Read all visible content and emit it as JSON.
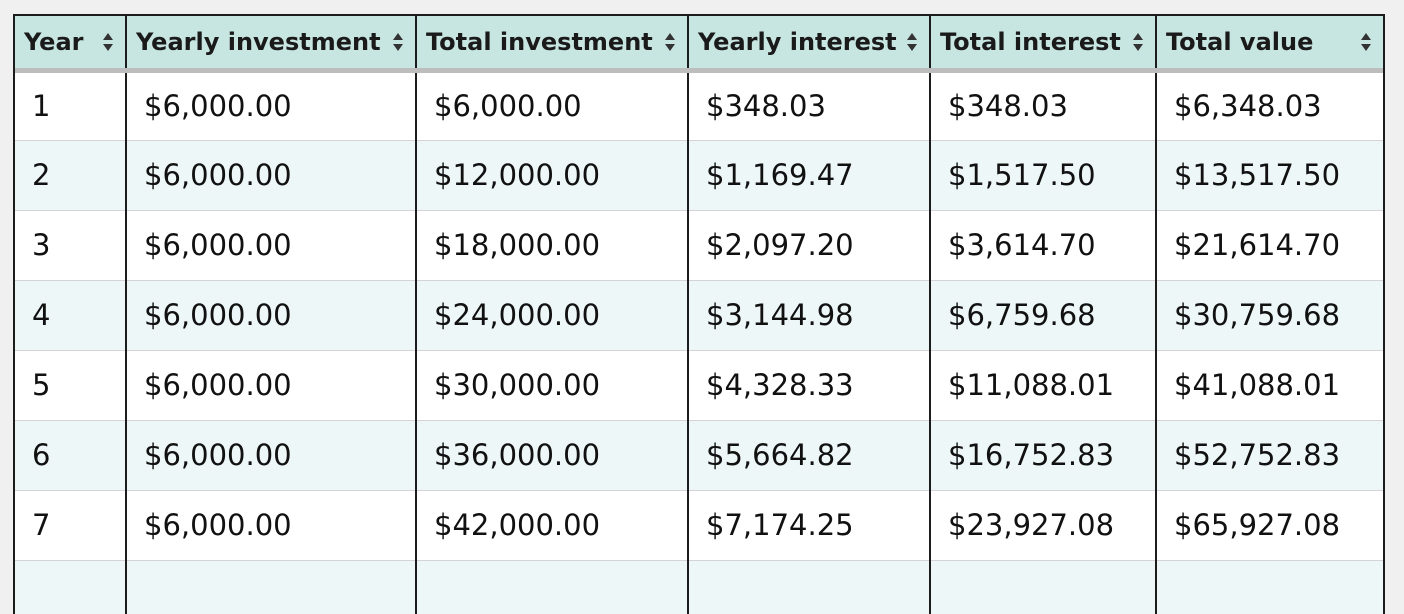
{
  "table": {
    "columns": [
      {
        "label": "Year"
      },
      {
        "label": "Yearly investment"
      },
      {
        "label": "Total investment"
      },
      {
        "label": "Yearly interest"
      },
      {
        "label": "Total interest"
      },
      {
        "label": "Total value"
      }
    ],
    "rows": [
      [
        "1",
        "$6,000.00",
        "$6,000.00",
        "$348.03",
        "$348.03",
        "$6,348.03"
      ],
      [
        "2",
        "$6,000.00",
        "$12,000.00",
        "$1,169.47",
        "$1,517.50",
        "$13,517.50"
      ],
      [
        "3",
        "$6,000.00",
        "$18,000.00",
        "$2,097.20",
        "$3,614.70",
        "$21,614.70"
      ],
      [
        "4",
        "$6,000.00",
        "$24,000.00",
        "$3,144.98",
        "$6,759.68",
        "$30,759.68"
      ],
      [
        "5",
        "$6,000.00",
        "$30,000.00",
        "$4,328.33",
        "$11,088.01",
        "$41,088.01"
      ],
      [
        "6",
        "$6,000.00",
        "$36,000.00",
        "$5,664.82",
        "$16,752.83",
        "$52,752.83"
      ],
      [
        "7",
        "$6,000.00",
        "$42,000.00",
        "$7,174.25",
        "$23,927.08",
        "$65,927.08"
      ],
      [
        "",
        "",
        "",
        "",
        "",
        ""
      ]
    ],
    "sort_icon": "sort-up-down-icon",
    "colors": {
      "header_bg": "#c8e6e1",
      "row_alt_bg": "#eef7f7",
      "border": "#1c1c1c"
    }
  }
}
